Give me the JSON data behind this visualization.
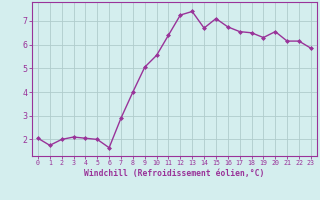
{
  "x": [
    0,
    1,
    2,
    3,
    4,
    5,
    6,
    7,
    8,
    9,
    10,
    11,
    12,
    13,
    14,
    15,
    16,
    17,
    18,
    19,
    20,
    21,
    22,
    23
  ],
  "y": [
    2.05,
    1.75,
    2.0,
    2.1,
    2.05,
    2.0,
    1.65,
    2.9,
    4.0,
    5.05,
    5.55,
    6.4,
    7.25,
    7.4,
    6.7,
    7.1,
    6.75,
    6.55,
    6.5,
    6.3,
    6.55,
    6.15,
    6.15,
    5.85
  ],
  "line_color": "#993399",
  "marker": "D",
  "marker_size": 2.0,
  "linewidth": 1.0,
  "bg_color": "#d4eeee",
  "grid_color": "#b0cccc",
  "xlabel": "Windchill (Refroidissement éolien,°C)",
  "xlabel_color": "#993399",
  "tick_color": "#993399",
  "ylim": [
    1.3,
    7.8
  ],
  "xlim": [
    -0.5,
    23.5
  ],
  "yticks": [
    2,
    3,
    4,
    5,
    6,
    7
  ],
  "xticks": [
    0,
    1,
    2,
    3,
    4,
    5,
    6,
    7,
    8,
    9,
    10,
    11,
    12,
    13,
    14,
    15,
    16,
    17,
    18,
    19,
    20,
    21,
    22,
    23
  ]
}
